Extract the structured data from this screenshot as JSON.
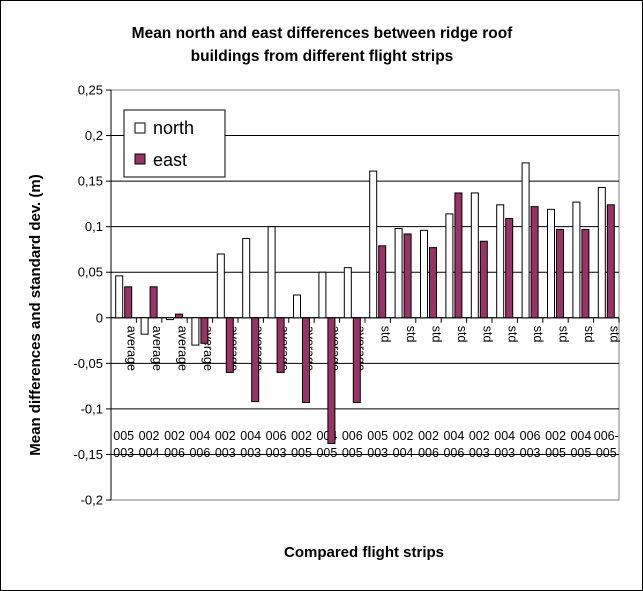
{
  "chart_data": {
    "type": "bar",
    "title_lines": [
      "Mean north and east differences between ridge roof",
      "buildings from different flight strips"
    ],
    "xlabel": "Compared flight strips",
    "ylabel": "Mean differences and standard dev. (m)",
    "ylim": [
      -0.2,
      0.25
    ],
    "y_step": 0.05,
    "ytick_labels": [
      "-0,2",
      "-0,15",
      "-0,1",
      "-0,05",
      "0",
      "0,05",
      "0,1",
      "0,15",
      "0,2",
      "0,25"
    ],
    "grid": "horizontal",
    "legend_position": "top-left",
    "categories": [
      {
        "stat": "average",
        "strips": "005-003"
      },
      {
        "stat": "average",
        "strips": "002-004"
      },
      {
        "stat": "average",
        "strips": "002-006"
      },
      {
        "stat": "average",
        "strips": "004-006"
      },
      {
        "stat": "average",
        "strips": "002-003"
      },
      {
        "stat": "average",
        "strips": "004-003"
      },
      {
        "stat": "average",
        "strips": "006-003"
      },
      {
        "stat": "average",
        "strips": "002-005"
      },
      {
        "stat": "average",
        "strips": "004-005"
      },
      {
        "stat": "average",
        "strips": "006-005"
      },
      {
        "stat": "std",
        "strips": "005-003"
      },
      {
        "stat": "std",
        "strips": "002-004"
      },
      {
        "stat": "std",
        "strips": "002-006"
      },
      {
        "stat": "std",
        "strips": "004-006"
      },
      {
        "stat": "std",
        "strips": "002-003"
      },
      {
        "stat": "std",
        "strips": "004-003"
      },
      {
        "stat": "std",
        "strips": "006-003"
      },
      {
        "stat": "std",
        "strips": "002-005"
      },
      {
        "stat": "std",
        "strips": "004-005"
      },
      {
        "stat": "std",
        "strips": "006-005"
      }
    ],
    "x_tick_rows": [
      [
        "005",
        "002",
        "002",
        "004",
        "002",
        "004",
        "006",
        "002",
        "004",
        "006",
        "005",
        "002",
        "002",
        "004",
        "002",
        "004",
        "006",
        "002",
        "004",
        "006-"
      ],
      [
        "003",
        "004",
        "006",
        "006",
        "003",
        "003",
        "003",
        "005",
        "005",
        "005",
        "003",
        "004",
        "006",
        "006",
        "003",
        "003",
        "003",
        "005",
        "005",
        "005"
      ]
    ],
    "series": [
      {
        "name": "north",
        "color": "#ffffff",
        "values": [
          0.046,
          -0.018,
          -0.002,
          -0.03,
          0.07,
          0.087,
          0.1,
          0.025,
          0.05,
          0.055,
          0.161,
          0.098,
          0.096,
          0.114,
          0.137,
          0.124,
          0.17,
          0.119,
          0.127,
          0.143
        ]
      },
      {
        "name": "east",
        "color": "#993366",
        "values": [
          0.034,
          0.034,
          0.004,
          -0.028,
          -0.06,
          -0.092,
          -0.06,
          -0.093,
          -0.138,
          -0.093,
          0.079,
          0.092,
          0.077,
          0.137,
          0.084,
          0.109,
          0.122,
          0.097,
          0.097,
          0.124
        ]
      }
    ]
  }
}
